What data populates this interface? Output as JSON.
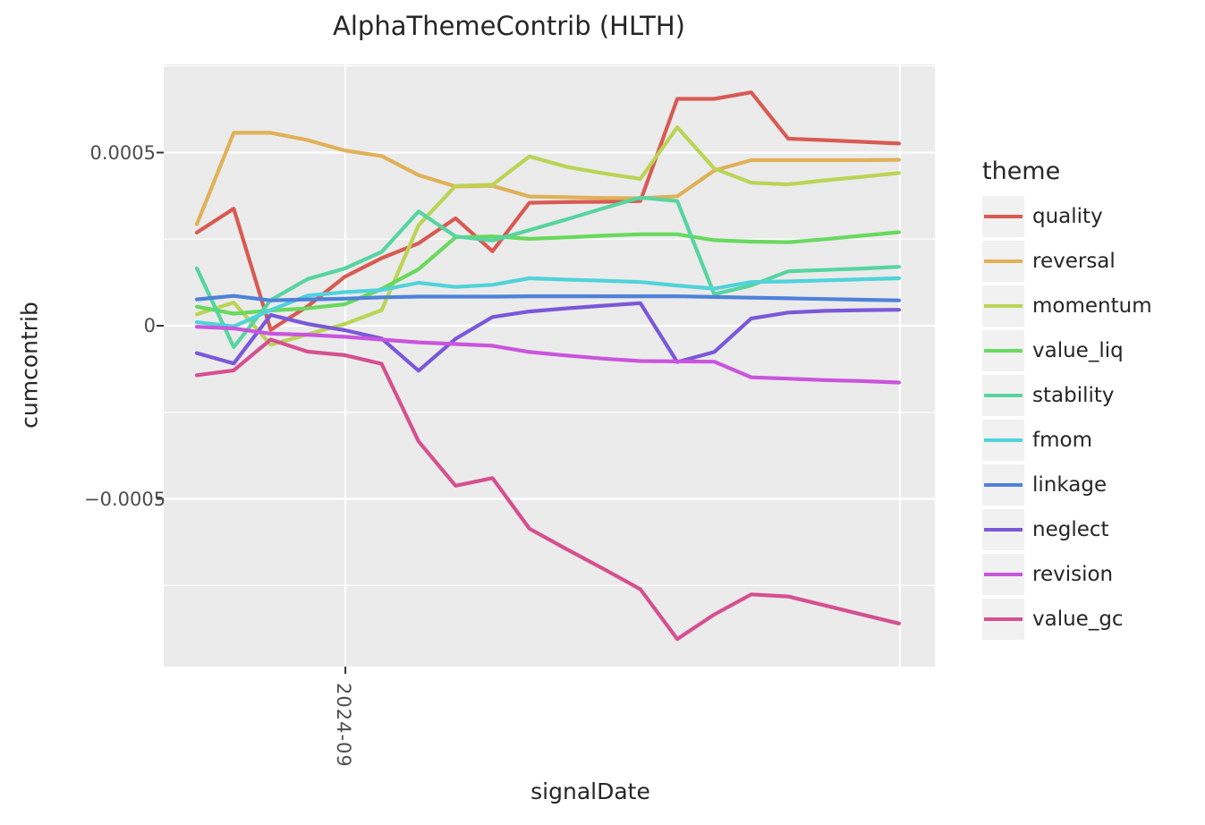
{
  "title": "AlphaThemeContrib (HLTH)",
  "axes": {
    "y_label": "cumcontrib",
    "x_label": "signalDate",
    "y_ticks": [
      {
        "label": "0.0005",
        "value": 0.0005
      },
      {
        "label": "0",
        "value": 0
      },
      {
        "label": "−0.0005",
        "value": -0.0005
      }
    ],
    "x_tick": {
      "label": "2024-09",
      "index": 4.02
    },
    "y_minor_values": [
      0.00075,
      0.00025,
      -0.00025,
      -0.00075
    ],
    "x_major_gridline_indices": [
      4.02,
      19.02
    ],
    "ylim": [
      -0.000984,
      0.000753
    ],
    "grid": "on",
    "panel_background": "#ebebeb",
    "gridline_color": "#ffffff"
  },
  "legend": {
    "title": "theme",
    "position": "right",
    "items": [
      {
        "label": "quality",
        "color": "#d85a53"
      },
      {
        "label": "reversal",
        "color": "#e0b158"
      },
      {
        "label": "momentum",
        "color": "#bbd455"
      },
      {
        "label": "value_liq",
        "color": "#69d95e"
      },
      {
        "label": "stability",
        "color": "#57d5a0"
      },
      {
        "label": "fmom",
        "color": "#50d3da"
      },
      {
        "label": "linkage",
        "color": "#4e82da"
      },
      {
        "label": "neglect",
        "color": "#7a58d8"
      },
      {
        "label": "revision",
        "color": "#c955dd"
      },
      {
        "label": "value_gc",
        "color": "#d55090"
      }
    ]
  },
  "chart_data": {
    "type": "line",
    "title": "AlphaThemeContrib (HLTH)",
    "xlabel": "signalDate",
    "ylabel": "cumcontrib",
    "x_tick_labels_visible": [
      "2024-09"
    ],
    "x": [
      0,
      1,
      2,
      3,
      4,
      5,
      6,
      7,
      8,
      9,
      10,
      11,
      12,
      13,
      14,
      15,
      16,
      17,
      18,
      19
    ],
    "series": [
      {
        "name": "quality",
        "color": "#d85a53",
        "values": [
          0.000269,
          0.000338,
          -1.2e-05,
          5.6e-05,
          0.000141,
          0.000195,
          0.000238,
          0.00031,
          0.000215,
          0.000355,
          0.000357,
          0.000358,
          0.00036,
          0.000655,
          0.000655,
          0.000674,
          0.00054,
          0.000536,
          0.000531,
          0.000526
        ]
      },
      {
        "name": "reversal",
        "color": "#e0b158",
        "values": [
          0.000293,
          0.000557,
          0.000557,
          0.000536,
          0.000506,
          0.00049,
          0.000435,
          0.000402,
          0.000404,
          0.000373,
          0.000371,
          0.000369,
          0.000368,
          0.000374,
          0.000448,
          0.000478,
          0.000478,
          0.000478,
          0.000478,
          0.000479
        ]
      },
      {
        "name": "momentum",
        "color": "#bbd455",
        "values": [
          3.3e-05,
          6.7e-05,
          -5.5e-05,
          -2.5e-05,
          5e-06,
          4.5e-05,
          0.00029,
          0.000404,
          0.000407,
          0.000489,
          0.000459,
          0.00044,
          0.000424,
          0.000573,
          0.000454,
          0.000413,
          0.000408,
          0.00042,
          0.00043,
          0.000441
        ]
      },
      {
        "name": "value_liq",
        "color": "#69d95e",
        "values": [
          5.5e-05,
          3.5e-05,
          4.4e-05,
          5e-05,
          6.2e-05,
          0.000106,
          0.000163,
          0.000255,
          0.000258,
          0.000251,
          0.000255,
          0.00026,
          0.000264,
          0.000264,
          0.000247,
          0.000243,
          0.000241,
          0.00025,
          0.00026,
          0.00027
        ]
      },
      {
        "name": "stability",
        "color": "#57d5a0",
        "values": [
          0.000166,
          -6.2e-05,
          7.4e-05,
          0.000135,
          0.000165,
          0.000213,
          0.00033,
          0.000258,
          0.000246,
          0.000276,
          0.000307,
          0.000339,
          0.00037,
          0.00036,
          9.1e-05,
          0.000116,
          0.000157,
          0.000161,
          0.000165,
          0.00017
        ]
      },
      {
        "name": "fmom",
        "color": "#50d3da",
        "values": [
          1e-05,
          -2e-06,
          4.5e-05,
          8.7e-05,
          9.7e-05,
          0.000103,
          0.000124,
          0.000112,
          0.000118,
          0.000137,
          0.000133,
          0.00013,
          0.000126,
          0.000116,
          0.000107,
          0.000126,
          0.000128,
          0.000131,
          0.000134,
          0.000137
        ]
      },
      {
        "name": "linkage",
        "color": "#4e82da",
        "values": [
          7.6e-05,
          8.6e-05,
          7.3e-05,
          7.6e-05,
          7.8e-05,
          8.2e-05,
          8.4e-05,
          8.4e-05,
          8.4e-05,
          8.5e-05,
          8.5e-05,
          8.5e-05,
          8.5e-05,
          8.5e-05,
          8.3e-05,
          8.1e-05,
          7.9e-05,
          7.7e-05,
          7.5e-05,
          7.3e-05
        ]
      },
      {
        "name": "neglect",
        "color": "#7a58d8",
        "values": [
          -7.9e-05,
          -0.000109,
          3.1e-05,
          5e-06,
          -1.3e-05,
          -3.7e-05,
          -0.00013,
          -3.8e-05,
          2.5e-05,
          4.1e-05,
          5e-05,
          5.8e-05,
          6.5e-05,
          -0.000105,
          -7.6e-05,
          2.1e-05,
          3.8e-05,
          4.3e-05,
          4.5e-05,
          4.6e-05
        ]
      },
      {
        "name": "revision",
        "color": "#c955dd",
        "values": [
          -3e-06,
          -8e-06,
          -2.3e-05,
          -2.6e-05,
          -3.2e-05,
          -4e-05,
          -4.8e-05,
          -5.3e-05,
          -5.8e-05,
          -7.6e-05,
          -8.6e-05,
          -9.5e-05,
          -0.000102,
          -0.000103,
          -0.000104,
          -0.000149,
          -0.000153,
          -0.000157,
          -0.00016,
          -0.000164
        ]
      },
      {
        "name": "value_gc",
        "color": "#d55090",
        "values": [
          -0.000143,
          -0.000129,
          -4e-05,
          -7.5e-05,
          -8.5e-05,
          -0.00011,
          -0.000334,
          -0.000462,
          -0.00044,
          -0.000586,
          -0.000645,
          -0.000702,
          -0.000761,
          -0.000905,
          -0.000834,
          -0.000776,
          -0.000782,
          -0.000808,
          -0.000834,
          -0.00086
        ]
      }
    ],
    "legend_title": "theme",
    "legend_position": "right"
  }
}
